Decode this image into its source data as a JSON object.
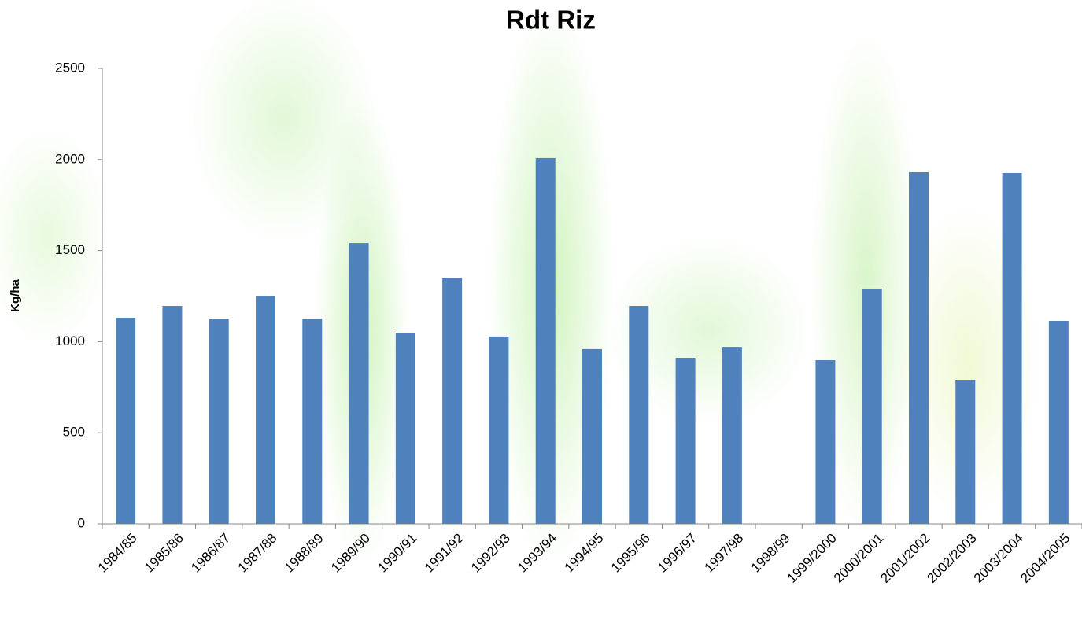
{
  "chart_data": {
    "type": "bar",
    "title": "Rdt Riz",
    "y_label": "Kg/ha",
    "categories": [
      "1984/85",
      "1985/86",
      "1986/87",
      "1987/88",
      "1988/89",
      "1989/90",
      "1990/91",
      "1991/92",
      "1992/93",
      "1993/94",
      "1994/95",
      "1995/96",
      "1996/97",
      "1997/98",
      "1998/99",
      "1999/2000",
      "2000/2001",
      "2001/2002",
      "2002/2003",
      "2003/2004",
      "2004/2005"
    ],
    "values": [
      1131,
      1196,
      1123,
      1252,
      1127,
      1541,
      1049,
      1351,
      1028,
      2008,
      959,
      1196,
      911,
      971,
      null,
      898,
      1291,
      1930,
      790,
      1926,
      1114
    ],
    "color": "#4f81bd",
    "ylim": [
      0,
      2500
    ],
    "yticks": [
      0,
      500,
      1000,
      1500,
      2000,
      2500
    ],
    "grid": false
  }
}
